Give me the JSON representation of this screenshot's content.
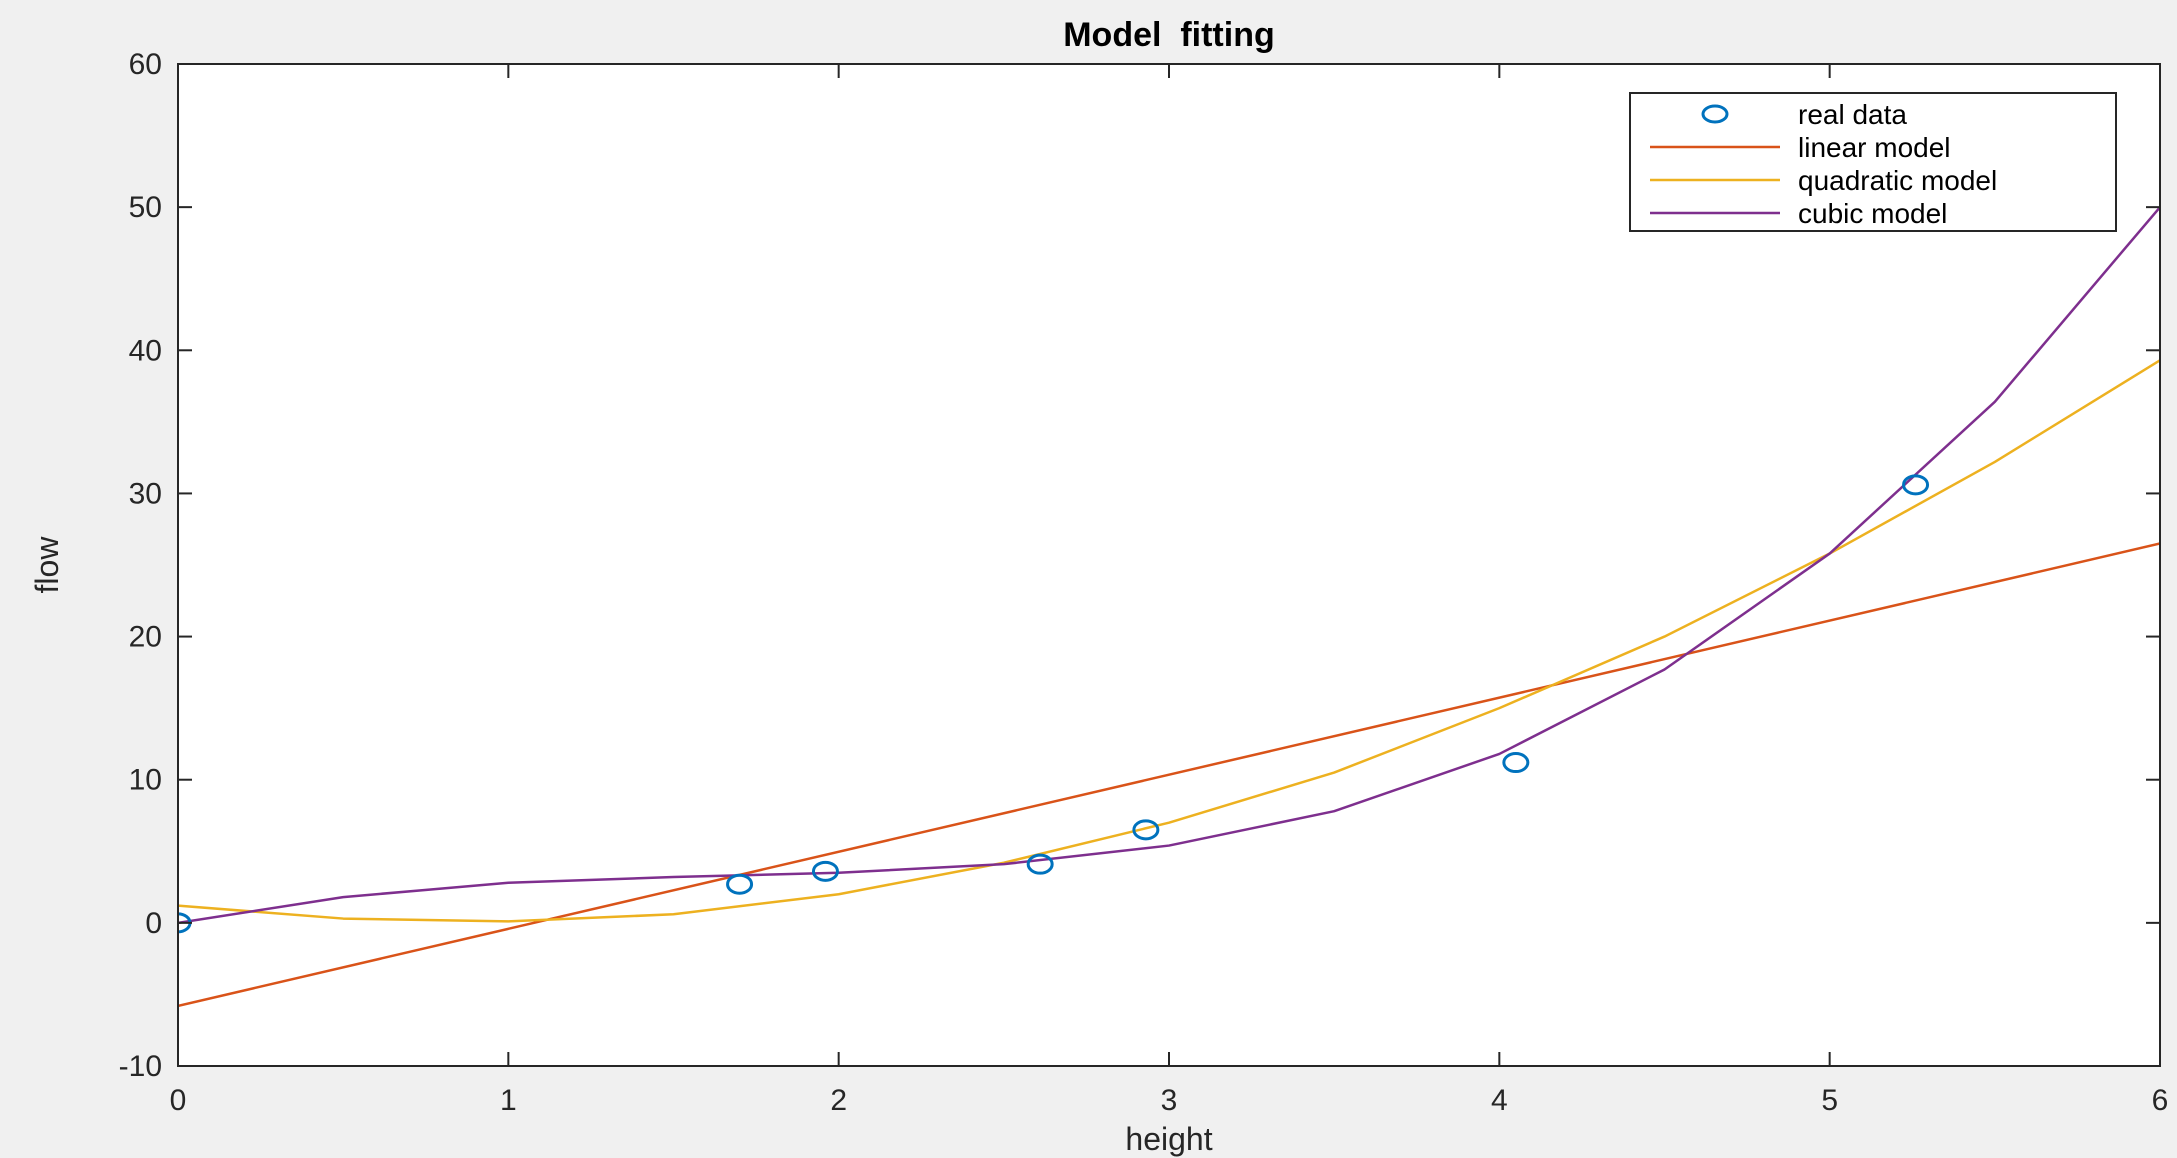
{
  "chart_data": {
    "type": "line",
    "title": "Model  fitting",
    "xlabel": "height",
    "ylabel": "flow",
    "xlim": [
      0,
      6
    ],
    "ylim": [
      -10,
      60
    ],
    "xticks": [
      0,
      1,
      2,
      3,
      4,
      5,
      6
    ],
    "yticks": [
      -10,
      0,
      10,
      20,
      30,
      40,
      50,
      60
    ],
    "grid": false,
    "legend_position": "top-right",
    "series": [
      {
        "name": "real data",
        "kind": "markers",
        "marker": "circle",
        "color": "#0072bd",
        "x": [
          0,
          1.7,
          1.96,
          2.61,
          2.93,
          4.05,
          5.26
        ],
        "y": [
          0,
          2.7,
          3.6,
          4.1,
          6.5,
          11.2,
          30.6
        ]
      },
      {
        "name": "linear model",
        "kind": "line",
        "color": "#d95319",
        "x": [
          0,
          6
        ],
        "y": [
          -5.8,
          26.5
        ]
      },
      {
        "name": "quadratic model",
        "kind": "line",
        "color": "#edb120",
        "x": [
          0,
          0.5,
          1,
          1.5,
          2,
          2.5,
          3,
          3.5,
          4,
          4.5,
          5,
          5.5,
          6
        ],
        "y": [
          1.2,
          0.3,
          0.1,
          0.6,
          2.0,
          4.2,
          7.0,
          10.5,
          15.0,
          20.0,
          25.8,
          32.2,
          39.3
        ]
      },
      {
        "name": "cubic model",
        "kind": "line",
        "color": "#7e2f8e",
        "x": [
          0,
          0.5,
          1,
          1.5,
          2,
          2.5,
          3,
          3.5,
          4,
          4.5,
          5,
          5.5,
          6
        ],
        "y": [
          0,
          1.8,
          2.8,
          3.2,
          3.5,
          4.1,
          5.4,
          7.8,
          11.8,
          17.7,
          25.8,
          36.4,
          50.0
        ]
      }
    ]
  }
}
